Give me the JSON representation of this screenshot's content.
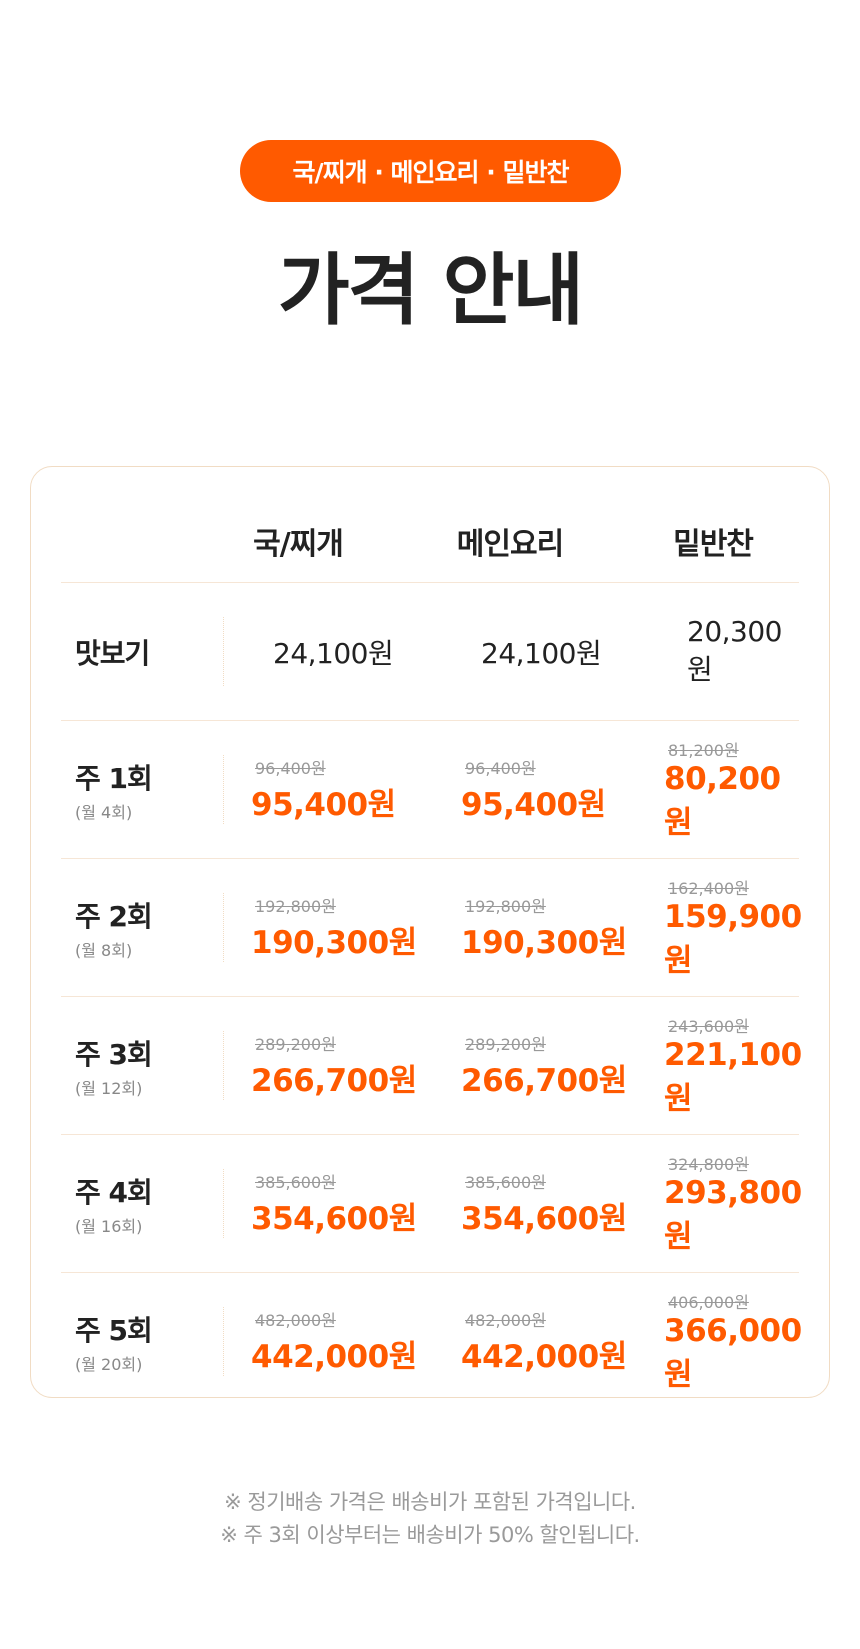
{
  "badge": "국/찌개 · 메인요리 · 밑반찬",
  "title": "가격 안내",
  "columns": [
    "국/찌개",
    "메인요리",
    "밑반찬"
  ],
  "tasting": {
    "label": "맛보기",
    "prices": [
      "24,100원",
      "24,100원",
      "20,300원"
    ]
  },
  "rows": [
    {
      "label": "주 1회",
      "sub": "(월 4회)",
      "prices": [
        {
          "old": "96,400원",
          "new": "95,400원"
        },
        {
          "old": "96,400원",
          "new": "95,400원"
        },
        {
          "old": "81,200원",
          "new": "80,200원"
        }
      ]
    },
    {
      "label": "주 2회",
      "sub": "(월 8회)",
      "prices": [
        {
          "old": "192,800원",
          "new": "190,300원"
        },
        {
          "old": "192,800원",
          "new": "190,300원"
        },
        {
          "old": "162,400원",
          "new": "159,900원"
        }
      ]
    },
    {
      "label": "주 3회",
      "sub": "(월 12회)",
      "prices": [
        {
          "old": "289,200원",
          "new": "266,700원"
        },
        {
          "old": "289,200원",
          "new": "266,700원"
        },
        {
          "old": "243,600원",
          "new": "221,100원"
        }
      ]
    },
    {
      "label": "주 4회",
      "sub": "(월 16회)",
      "prices": [
        {
          "old": "385,600원",
          "new": "354,600원"
        },
        {
          "old": "385,600원",
          "new": "354,600원"
        },
        {
          "old": "324,800원",
          "new": "293,800원"
        }
      ]
    },
    {
      "label": "주 5회",
      "sub": "(월 20회)",
      "prices": [
        {
          "old": "482,000원",
          "new": "442,000원"
        },
        {
          "old": "482,000원",
          "new": "442,000원"
        },
        {
          "old": "406,000원",
          "new": "366,000원"
        }
      ]
    }
  ],
  "notes": [
    "※ 정기배송 가격은 배송비가 포함된 가격입니다.",
    "※ 주 3회 이상부터는 배송비가 50% 할인됩니다."
  ],
  "colors": {
    "accent": "#ff5a00",
    "border": "#f1dcc4"
  }
}
